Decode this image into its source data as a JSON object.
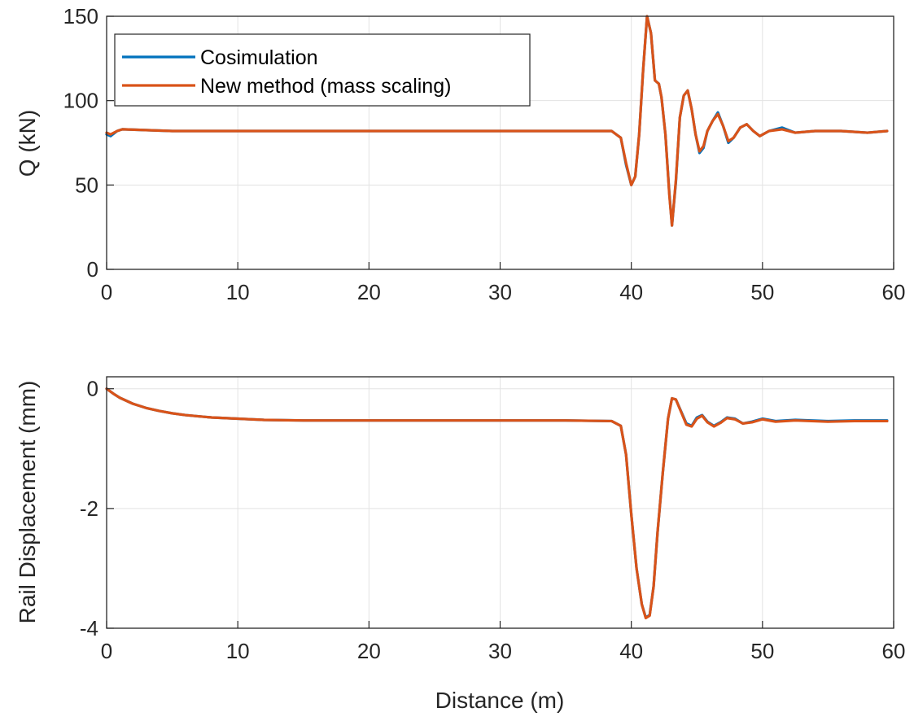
{
  "legend": {
    "entries": [
      {
        "label": "Cosimulation",
        "color": "#0072BD"
      },
      {
        "label": "New method (mass scaling)",
        "color": "#D95319"
      }
    ],
    "placement": "top-left"
  },
  "chart_data": [
    {
      "type": "line",
      "ylabel": "Q (kN)",
      "xlabel": "",
      "xlim": [
        0,
        60
      ],
      "ylim": [
        0,
        150
      ],
      "xticks": [
        "0",
        "10",
        "20",
        "30",
        "40",
        "50",
        "60"
      ],
      "yticks": [
        "0",
        "50",
        "100",
        "150"
      ],
      "grid": true,
      "series": [
        {
          "name": "Cosimulation",
          "color": "#0072BD",
          "x": [
            0,
            0.3,
            0.8,
            1.2,
            5,
            10,
            20,
            30,
            37,
            38.5,
            39.2,
            39.6,
            40.0,
            40.3,
            40.6,
            40.9,
            41.2,
            41.5,
            41.8,
            42.1,
            42.3,
            42.6,
            42.9,
            43.1,
            43.4,
            43.7,
            44.0,
            44.3,
            44.6,
            44.9,
            45.2,
            45.5,
            45.8,
            46.2,
            46.6,
            47.0,
            47.4,
            47.8,
            48.3,
            48.8,
            49.3,
            49.8,
            50.5,
            51.5,
            52.5,
            54,
            56,
            58,
            59.5
          ],
          "y": [
            80,
            79,
            82,
            83,
            82,
            82,
            82,
            82,
            82,
            82,
            78,
            62,
            50,
            55,
            80,
            118,
            150,
            140,
            112,
            110,
            102,
            80,
            45,
            26,
            52,
            90,
            103,
            106,
            95,
            80,
            69,
            72,
            82,
            88,
            93,
            85,
            75,
            78,
            84,
            86,
            82,
            79,
            82,
            84,
            81,
            82,
            82,
            81,
            82
          ]
        },
        {
          "name": "New method (mass scaling)",
          "color": "#D95319",
          "x": [
            0,
            0.3,
            0.8,
            1.2,
            5,
            10,
            20,
            30,
            37,
            38.5,
            39.2,
            39.6,
            40.0,
            40.3,
            40.6,
            40.9,
            41.2,
            41.5,
            41.8,
            42.1,
            42.3,
            42.6,
            42.9,
            43.1,
            43.4,
            43.7,
            44.0,
            44.3,
            44.6,
            44.9,
            45.2,
            45.5,
            45.8,
            46.2,
            46.6,
            47.0,
            47.4,
            47.8,
            48.3,
            48.8,
            49.3,
            49.8,
            50.5,
            51.5,
            52.5,
            54,
            56,
            58,
            59.5
          ],
          "y": [
            81,
            80,
            82,
            83,
            82,
            82,
            82,
            82,
            82,
            82,
            78,
            63,
            50,
            55,
            80,
            118,
            150,
            140,
            112,
            110,
            102,
            80,
            44,
            26,
            53,
            90,
            103,
            106,
            95,
            80,
            70,
            73,
            82,
            88,
            92,
            85,
            76,
            78,
            84,
            86,
            82,
            79,
            82,
            83,
            81,
            82,
            82,
            81,
            82
          ]
        }
      ]
    },
    {
      "type": "line",
      "ylabel": "Rail Displacement (mm)",
      "xlabel": "Distance (m)",
      "xlim": [
        0,
        60
      ],
      "ylim": [
        -4,
        0.2
      ],
      "xticks": [
        "0",
        "10",
        "20",
        "30",
        "40",
        "50",
        "60"
      ],
      "yticks": [
        "-4",
        "-2",
        "0"
      ],
      "grid": true,
      "series": [
        {
          "name": "Cosimulation",
          "color": "#0072BD",
          "x": [
            0,
            0.5,
            1,
            2,
            3,
            4,
            5,
            6,
            7,
            8,
            10,
            12,
            15,
            20,
            25,
            30,
            35,
            38.5,
            39.2,
            39.6,
            40.0,
            40.4,
            40.8,
            41.1,
            41.4,
            41.7,
            42.0,
            42.4,
            42.8,
            43.1,
            43.4,
            43.8,
            44.2,
            44.6,
            45.0,
            45.4,
            45.8,
            46.3,
            46.8,
            47.3,
            47.9,
            48.5,
            49.2,
            50,
            51,
            52.5,
            55,
            57,
            59.5
          ],
          "y": [
            0,
            -0.08,
            -0.15,
            -0.25,
            -0.32,
            -0.37,
            -0.41,
            -0.44,
            -0.46,
            -0.48,
            -0.5,
            -0.52,
            -0.53,
            -0.53,
            -0.53,
            -0.53,
            -0.53,
            -0.54,
            -0.62,
            -1.1,
            -2.1,
            -3.0,
            -3.6,
            -3.82,
            -3.78,
            -3.3,
            -2.4,
            -1.4,
            -0.5,
            -0.16,
            -0.18,
            -0.38,
            -0.58,
            -0.62,
            -0.48,
            -0.44,
            -0.55,
            -0.62,
            -0.56,
            -0.48,
            -0.5,
            -0.58,
            -0.55,
            -0.5,
            -0.54,
            -0.52,
            -0.54,
            -0.53,
            -0.53
          ]
        },
        {
          "name": "New method (mass scaling)",
          "color": "#D95319",
          "x": [
            0,
            0.5,
            1,
            2,
            3,
            4,
            5,
            6,
            7,
            8,
            10,
            12,
            15,
            20,
            25,
            30,
            35,
            38.5,
            39.2,
            39.6,
            40.0,
            40.4,
            40.8,
            41.1,
            41.4,
            41.7,
            42.0,
            42.4,
            42.8,
            43.1,
            43.4,
            43.8,
            44.2,
            44.6,
            45.0,
            45.4,
            45.8,
            46.3,
            46.8,
            47.3,
            47.9,
            48.5,
            49.2,
            50,
            51,
            52.5,
            55,
            57,
            59.5
          ],
          "y": [
            0,
            -0.08,
            -0.15,
            -0.25,
            -0.32,
            -0.37,
            -0.41,
            -0.44,
            -0.46,
            -0.48,
            -0.5,
            -0.52,
            -0.53,
            -0.53,
            -0.53,
            -0.53,
            -0.53,
            -0.54,
            -0.62,
            -1.1,
            -2.1,
            -3.0,
            -3.6,
            -3.83,
            -3.79,
            -3.3,
            -2.4,
            -1.4,
            -0.5,
            -0.16,
            -0.18,
            -0.39,
            -0.6,
            -0.63,
            -0.5,
            -0.45,
            -0.56,
            -0.63,
            -0.57,
            -0.49,
            -0.51,
            -0.58,
            -0.56,
            -0.51,
            -0.55,
            -0.53,
            -0.55,
            -0.54,
            -0.54
          ]
        }
      ]
    }
  ]
}
